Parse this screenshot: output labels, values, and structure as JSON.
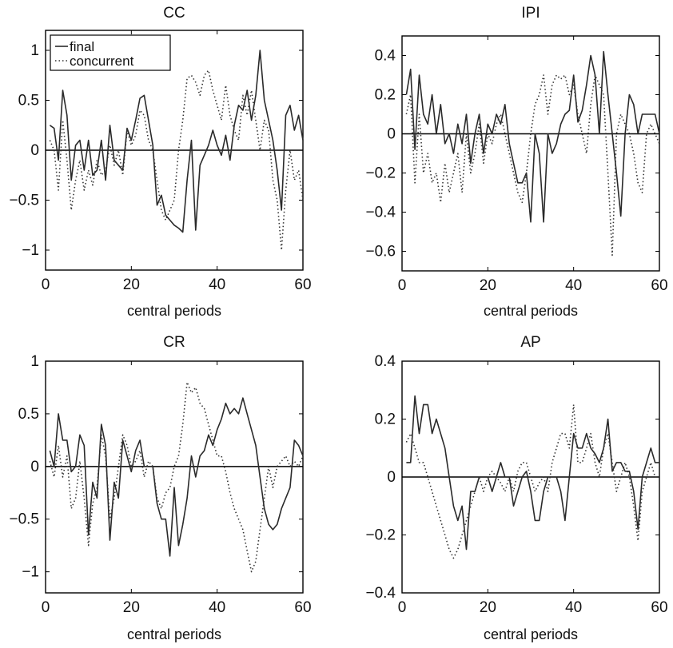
{
  "colors": {
    "final_line": "#2a2a2a",
    "concurrent_line": "#333333",
    "zero_line": "#000000",
    "axes": "#000000",
    "background": "#ffffff"
  },
  "chart_data": [
    {
      "type": "line",
      "title": "CC",
      "xlabel": "central periods",
      "ylabel": "",
      "xlim": [
        0,
        60
      ],
      "ylim": [
        -1.2,
        1.2
      ],
      "xticks": [
        0,
        20,
        40,
        60
      ],
      "yticks": [
        -1,
        -0.5,
        0,
        0.5,
        1
      ],
      "xtick_labels": [
        "0",
        "20",
        "40",
        "60"
      ],
      "ytick_labels": [
        "−1",
        "−0.5",
        "0",
        "0.5",
        "1"
      ],
      "grid": false,
      "legend": {
        "placement": "top-left",
        "entries": [
          "final",
          "concurrent"
        ]
      },
      "zero_line": true,
      "x": [
        1,
        2,
        3,
        4,
        5,
        6,
        7,
        8,
        9,
        10,
        11,
        12,
        13,
        14,
        15,
        16,
        17,
        18,
        19,
        20,
        21,
        22,
        23,
        24,
        25,
        26,
        27,
        28,
        29,
        30,
        31,
        32,
        33,
        34,
        35,
        36,
        37,
        38,
        39,
        40,
        41,
        42,
        43,
        44,
        45,
        46,
        47,
        48,
        49,
        50,
        51,
        52,
        53,
        54,
        55,
        56,
        57,
        58,
        59,
        60
      ],
      "series": [
        {
          "name": "final",
          "style": "solid",
          "values": [
            0.25,
            0.22,
            -0.1,
            0.6,
            0.35,
            -0.3,
            0.05,
            0.1,
            -0.2,
            0.1,
            -0.25,
            -0.2,
            0.1,
            -0.3,
            0.25,
            -0.1,
            -0.15,
            -0.2,
            0.22,
            0.1,
            0.3,
            0.52,
            0.55,
            0.3,
            0.05,
            -0.55,
            -0.45,
            -0.65,
            -0.7,
            -0.75,
            -0.78,
            -0.82,
            -0.3,
            0.1,
            -0.8,
            -0.15,
            -0.05,
            0.05,
            0.2,
            0.05,
            -0.05,
            0.15,
            -0.1,
            0.25,
            0.45,
            0.4,
            0.6,
            0.3,
            0.55,
            1.0,
            0.5,
            0.3,
            0.1,
            -0.2,
            -0.6,
            0.35,
            0.45,
            0.2,
            0.35,
            0.1
          ]
        },
        {
          "name": "concurrent",
          "style": "dotted",
          "values": [
            0.1,
            0.0,
            -0.4,
            0.3,
            -0.1,
            -0.6,
            -0.3,
            -0.1,
            -0.4,
            -0.2,
            -0.35,
            -0.1,
            -0.25,
            -0.2,
            0.05,
            -0.15,
            0.0,
            -0.25,
            0.2,
            0.05,
            0.15,
            0.4,
            0.35,
            0.1,
            0.0,
            -0.3,
            -0.6,
            -0.7,
            -0.6,
            -0.5,
            0.0,
            0.3,
            0.72,
            0.75,
            0.68,
            0.55,
            0.75,
            0.8,
            0.6,
            0.45,
            0.3,
            0.65,
            0.35,
            0.2,
            0.1,
            0.55,
            0.35,
            0.6,
            0.3,
            0.0,
            0.3,
            0.2,
            -0.3,
            -0.5,
            -1.0,
            -0.4,
            0.0,
            -0.3,
            -0.2,
            -0.5
          ]
        }
      ]
    },
    {
      "type": "line",
      "title": "IPI",
      "xlabel": "central periods",
      "ylabel": "",
      "xlim": [
        0,
        60
      ],
      "ylim": [
        -0.7,
        0.5
      ],
      "xticks": [
        0,
        20,
        40,
        60
      ],
      "yticks": [
        -0.6,
        -0.4,
        -0.2,
        0,
        0.2,
        0.4
      ],
      "xtick_labels": [
        "0",
        "20",
        "40",
        "60"
      ],
      "ytick_labels": [
        "−0.6",
        "−0.4",
        "−0.2",
        "0",
        "0.2",
        "0.4"
      ],
      "grid": false,
      "legend": null,
      "zero_line": true,
      "x": [
        1,
        2,
        3,
        4,
        5,
        6,
        7,
        8,
        9,
        10,
        11,
        12,
        13,
        14,
        15,
        16,
        17,
        18,
        19,
        20,
        21,
        22,
        23,
        24,
        25,
        26,
        27,
        28,
        29,
        30,
        31,
        32,
        33,
        34,
        35,
        36,
        37,
        38,
        39,
        40,
        41,
        42,
        43,
        44,
        45,
        46,
        47,
        48,
        49,
        50,
        51,
        52,
        53,
        54,
        55,
        56,
        57,
        58,
        59,
        60
      ],
      "series": [
        {
          "name": "final",
          "style": "solid",
          "values": [
            0.2,
            0.33,
            -0.08,
            0.3,
            0.1,
            0.05,
            0.2,
            0.0,
            0.15,
            -0.05,
            0.0,
            -0.1,
            0.05,
            -0.05,
            0.1,
            -0.15,
            0.0,
            0.1,
            -0.1,
            0.05,
            0.0,
            0.1,
            0.05,
            0.15,
            -0.05,
            -0.15,
            -0.25,
            -0.25,
            -0.2,
            -0.45,
            0.0,
            -0.1,
            -0.45,
            0.0,
            -0.1,
            -0.05,
            0.05,
            0.1,
            0.12,
            0.3,
            0.06,
            0.12,
            0.25,
            0.4,
            0.3,
            0.0,
            0.42,
            0.2,
            0.0,
            -0.2,
            -0.42,
            0.0,
            0.2,
            0.15,
            0.0,
            0.1,
            0.1,
            0.1,
            0.1,
            0.0
          ]
        },
        {
          "name": "concurrent",
          "style": "dotted",
          "values": [
            0.1,
            0.2,
            -0.25,
            0.1,
            -0.2,
            -0.1,
            -0.25,
            -0.2,
            -0.35,
            -0.15,
            -0.3,
            -0.2,
            -0.1,
            -0.3,
            0.0,
            -0.2,
            -0.1,
            0.05,
            -0.15,
            0.0,
            -0.05,
            0.05,
            0.1,
            0.0,
            -0.1,
            -0.2,
            -0.3,
            -0.35,
            -0.2,
            0.0,
            0.15,
            0.2,
            0.3,
            0.1,
            0.25,
            0.3,
            0.28,
            0.3,
            0.2,
            0.25,
            0.1,
            0.0,
            -0.1,
            0.15,
            0.3,
            0.25,
            0.2,
            -0.2,
            -0.62,
            0.0,
            0.1,
            0.05,
            0.0,
            -0.1,
            -0.25,
            -0.3,
            0.0,
            0.05,
            0.0,
            -0.05
          ]
        }
      ]
    },
    {
      "type": "line",
      "title": "CR",
      "xlabel": "central periods",
      "ylabel": "",
      "xlim": [
        0,
        60
      ],
      "ylim": [
        -1.2,
        1.0
      ],
      "xticks": [
        0,
        20,
        40,
        60
      ],
      "yticks": [
        -1,
        -0.5,
        0,
        0.5,
        1
      ],
      "xtick_labels": [
        "0",
        "20",
        "40",
        "60"
      ],
      "ytick_labels": [
        "−1",
        "−0.5",
        "0",
        "0.5",
        "1"
      ],
      "grid": false,
      "legend": null,
      "zero_line": true,
      "x": [
        1,
        2,
        3,
        4,
        5,
        6,
        7,
        8,
        9,
        10,
        11,
        12,
        13,
        14,
        15,
        16,
        17,
        18,
        19,
        20,
        21,
        22,
        23,
        24,
        25,
        26,
        27,
        28,
        29,
        30,
        31,
        32,
        33,
        34,
        35,
        36,
        37,
        38,
        39,
        40,
        41,
        42,
        43,
        44,
        45,
        46,
        47,
        48,
        49,
        50,
        51,
        52,
        53,
        54,
        55,
        56,
        57,
        58,
        59,
        60
      ],
      "series": [
        {
          "name": "final",
          "style": "solid",
          "values": [
            0.15,
            0.0,
            0.5,
            0.25,
            0.25,
            -0.05,
            0.0,
            0.3,
            0.2,
            -0.65,
            -0.15,
            -0.3,
            0.4,
            0.2,
            -0.7,
            -0.15,
            -0.3,
            0.25,
            0.1,
            -0.05,
            0.15,
            0.25,
            0.0,
            0.0,
            0.0,
            -0.35,
            -0.5,
            -0.5,
            -0.85,
            -0.2,
            -0.75,
            -0.55,
            -0.3,
            0.1,
            -0.1,
            0.1,
            0.15,
            0.3,
            0.2,
            0.35,
            0.45,
            0.6,
            0.5,
            0.55,
            0.5,
            0.65,
            0.5,
            0.35,
            0.2,
            -0.1,
            -0.4,
            -0.55,
            -0.6,
            -0.55,
            -0.4,
            -0.3,
            -0.2,
            0.25,
            0.2,
            0.1
          ]
        },
        {
          "name": "concurrent",
          "style": "dotted",
          "values": [
            0.05,
            -0.1,
            0.2,
            -0.1,
            0.1,
            -0.4,
            -0.3,
            0.05,
            -0.3,
            -0.75,
            -0.35,
            -0.2,
            0.3,
            0.1,
            -0.5,
            -0.3,
            0.0,
            0.3,
            0.2,
            0.0,
            0.05,
            0.15,
            -0.1,
            0.05,
            0.0,
            -0.3,
            -0.4,
            -0.25,
            -0.2,
            0.0,
            0.1,
            0.4,
            0.8,
            0.7,
            0.75,
            0.6,
            0.55,
            0.4,
            0.25,
            0.1,
            0.1,
            -0.05,
            -0.25,
            -0.4,
            -0.5,
            -0.6,
            -0.8,
            -1.0,
            -0.9,
            -0.6,
            -0.3,
            0.0,
            -0.2,
            0.0,
            0.05,
            0.1,
            0.0,
            0.05,
            0.0,
            0.1
          ]
        }
      ]
    },
    {
      "type": "line",
      "title": "AP",
      "xlabel": "central periods",
      "ylabel": "",
      "xlim": [
        0,
        60
      ],
      "ylim": [
        -0.4,
        0.4
      ],
      "xticks": [
        0,
        20,
        40,
        60
      ],
      "yticks": [
        -0.4,
        -0.2,
        0,
        0.2,
        0.4
      ],
      "xtick_labels": [
        "0",
        "20",
        "40",
        "60"
      ],
      "ytick_labels": [
        "−0.4",
        "−0.2",
        "0",
        "0.2",
        "0.4"
      ],
      "grid": false,
      "legend": null,
      "zero_line": true,
      "x": [
        1,
        2,
        3,
        4,
        5,
        6,
        7,
        8,
        9,
        10,
        11,
        12,
        13,
        14,
        15,
        16,
        17,
        18,
        19,
        20,
        21,
        22,
        23,
        24,
        25,
        26,
        27,
        28,
        29,
        30,
        31,
        32,
        33,
        34,
        35,
        36,
        37,
        38,
        39,
        40,
        41,
        42,
        43,
        44,
        45,
        46,
        47,
        48,
        49,
        50,
        51,
        52,
        53,
        54,
        55,
        56,
        57,
        58,
        59,
        60
      ],
      "series": [
        {
          "name": "final",
          "style": "solid",
          "values": [
            0.05,
            0.05,
            0.28,
            0.15,
            0.25,
            0.25,
            0.15,
            0.2,
            0.15,
            0.1,
            0.0,
            -0.1,
            -0.15,
            -0.1,
            -0.25,
            -0.05,
            -0.05,
            0.0,
            0.0,
            0.0,
            -0.05,
            0.0,
            0.05,
            0.0,
            0.0,
            -0.1,
            -0.05,
            0.0,
            0.02,
            -0.05,
            -0.15,
            -0.15,
            -0.05,
            0.0,
            0.0,
            0.0,
            -0.05,
            -0.15,
            0.0,
            0.15,
            0.1,
            0.1,
            0.15,
            0.1,
            0.08,
            0.05,
            0.1,
            0.2,
            0.02,
            0.05,
            0.05,
            0.02,
            0.02,
            -0.05,
            -0.18,
            0.0,
            0.05,
            0.1,
            0.05,
            0.05
          ]
        },
        {
          "name": "concurrent",
          "style": "dotted",
          "values": [
            0.12,
            0.15,
            0.1,
            0.05,
            0.05,
            0.0,
            -0.05,
            -0.1,
            -0.15,
            -0.2,
            -0.25,
            -0.28,
            -0.25,
            -0.2,
            -0.15,
            -0.1,
            -0.05,
            0.0,
            -0.05,
            0.0,
            0.02,
            0.0,
            -0.02,
            -0.05,
            0.0,
            -0.05,
            0.02,
            0.05,
            0.05,
            0.0,
            -0.05,
            -0.02,
            0.0,
            -0.05,
            0.05,
            0.1,
            0.15,
            0.15,
            0.1,
            0.25,
            0.05,
            0.05,
            0.1,
            0.15,
            0.05,
            0.0,
            0.1,
            0.15,
            0.05,
            -0.05,
            0.0,
            0.05,
            0.0,
            -0.1,
            -0.22,
            -0.05,
            0.0,
            0.05,
            0.0,
            0.0
          ]
        }
      ]
    }
  ]
}
